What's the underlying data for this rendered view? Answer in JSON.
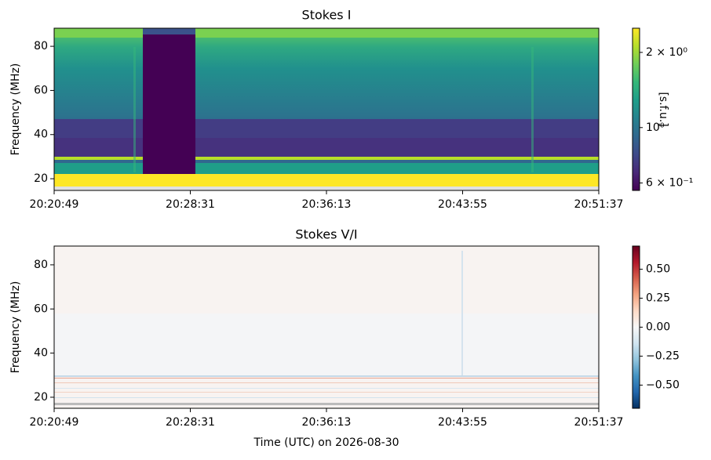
{
  "chart_data": [
    {
      "type": "heatmap",
      "title": "Stokes I",
      "ylabel": "Frequency (MHz)",
      "xlim": [
        "20:20:49",
        "20:51:37"
      ],
      "xticks": [
        "20:20:49",
        "20:28:31",
        "20:36:13",
        "20:43:55",
        "20:51:37"
      ],
      "ylim": [
        14.7,
        88.2
      ],
      "yticks": [
        20,
        40,
        60,
        80
      ],
      "colorbar": {
        "label": "[s.f.u.]",
        "colormap": "viridis",
        "log": true,
        "clim": [
          0.56,
          2.5
        ],
        "ticks": [
          {
            "value": 2,
            "label": "2 × 10⁰"
          },
          {
            "value": 1,
            "label": "10⁰"
          },
          {
            "value": 0.6,
            "label": "6 × 10⁻¹"
          }
        ]
      }
    },
    {
      "type": "heatmap",
      "title": "Stokes V/I",
      "ylabel": "Frequency (MHz)",
      "xlabel": "Time (UTC) on 2026-08-30",
      "xlim": [
        "20:20:49",
        "20:51:37"
      ],
      "xticks": [
        "20:20:49",
        "20:28:31",
        "20:36:13",
        "20:43:55",
        "20:51:37"
      ],
      "ylim": [
        15,
        88.5
      ],
      "yticks": [
        20,
        40,
        60,
        80
      ],
      "colorbar": {
        "colormap": "RdBu_r",
        "log": false,
        "clim": [
          -0.7,
          0.7
        ],
        "ticks": [
          {
            "value": 0.5,
            "label": "0.50"
          },
          {
            "value": 0.25,
            "label": "0.25"
          },
          {
            "value": 0,
            "label": "0.00"
          },
          {
            "value": -0.25,
            "label": "−0.25"
          },
          {
            "value": -0.5,
            "label": "−0.50"
          }
        ]
      }
    }
  ]
}
